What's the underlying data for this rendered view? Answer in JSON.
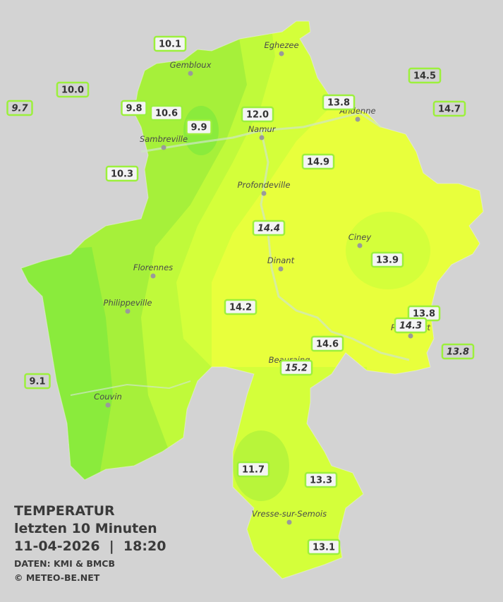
{
  "map": {
    "places": [
      "Eghezee",
      "Gembloux",
      "Andenne",
      "Namur",
      "Sambreville",
      "Profondeville",
      "Ciney",
      "Dinant",
      "Florennes",
      "Philippeville",
      "Rochefort",
      "Beauraing",
      "Couvin",
      "Vresse-sur-Semois"
    ],
    "stations": [
      "10.1",
      "10.0",
      "9.7",
      "9.8",
      "10.6",
      "9.9",
      "12.0",
      "13.8",
      "14.5",
      "14.7",
      "10.3",
      "14.9",
      "14.4",
      "13.9",
      "14.2",
      "13.8",
      "14.3",
      "13.8",
      "14.6",
      "15.2",
      "9.1",
      "11.7",
      "13.3",
      "13.1"
    ],
    "legend": {
      "title": "TEMPERATUR",
      "subtitle": "letzten 10 Minuten",
      "datetime": "11-04-2026  |  18:20",
      "source": "DATEN: KMI & BMCB",
      "copyright": "© METEO-BE.NET"
    }
  }
}
